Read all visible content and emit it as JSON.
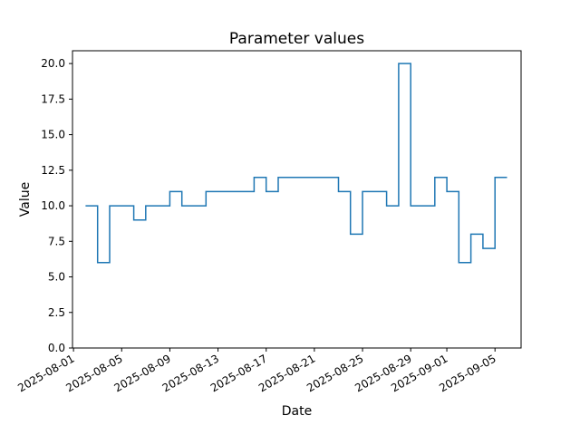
{
  "figure": {
    "title": "Parameter values",
    "xlabel": "Date",
    "ylabel": "Value"
  },
  "chart_data": {
    "type": "line",
    "subtype": "step",
    "step_where": "post",
    "title": "Parameter values",
    "xlabel": "Date",
    "ylabel": "Value",
    "line_color": "#1f77b4",
    "background_color": "#ffffff",
    "grid": false,
    "legend": null,
    "x": [
      "2025-08-02",
      "2025-08-03",
      "2025-08-04",
      "2025-08-06",
      "2025-08-07",
      "2025-08-09",
      "2025-08-10",
      "2025-08-12",
      "2025-08-16",
      "2025-08-17",
      "2025-08-18",
      "2025-08-23",
      "2025-08-24",
      "2025-08-25",
      "2025-08-27",
      "2025-08-28",
      "2025-08-29",
      "2025-08-31",
      "2025-09-01",
      "2025-09-02",
      "2025-09-03",
      "2025-09-04",
      "2025-09-05",
      "2025-09-06"
    ],
    "values": [
      10,
      6,
      10,
      9,
      10,
      11,
      10,
      11,
      12,
      11,
      12,
      11,
      8,
      11,
      10,
      20,
      10,
      12,
      11,
      6,
      8,
      7,
      12,
      12
    ],
    "xticks": [
      {
        "date": "2025-08-01",
        "label": "2025-08-01"
      },
      {
        "date": "2025-08-05",
        "label": "2025-08-05"
      },
      {
        "date": "2025-08-09",
        "label": "2025-08-09"
      },
      {
        "date": "2025-08-13",
        "label": "2025-08-13"
      },
      {
        "date": "2025-08-17",
        "label": "2025-08-17"
      },
      {
        "date": "2025-08-21",
        "label": "2025-08-21"
      },
      {
        "date": "2025-08-25",
        "label": "2025-08-25"
      },
      {
        "date": "2025-08-29",
        "label": "2025-08-29"
      },
      {
        "date": "2025-09-01",
        "label": "2025-09-01"
      },
      {
        "date": "2025-09-05",
        "label": "2025-09-05"
      }
    ],
    "yticks": [
      {
        "value": 0,
        "label": "0.0"
      },
      {
        "value": 2.5,
        "label": "2.5"
      },
      {
        "value": 5,
        "label": "5.0"
      },
      {
        "value": 7.5,
        "label": "7.5"
      },
      {
        "value": 10,
        "label": "10.0"
      },
      {
        "value": 12.5,
        "label": "12.5"
      },
      {
        "value": 15,
        "label": "15.0"
      },
      {
        "value": 17.5,
        "label": "17.5"
      },
      {
        "value": 20,
        "label": "20.0"
      }
    ],
    "ylim": [
      0,
      20.9
    ],
    "xlim": [
      "2025-07-31T22:00:00",
      "2025-09-07T04:00:00"
    ]
  }
}
